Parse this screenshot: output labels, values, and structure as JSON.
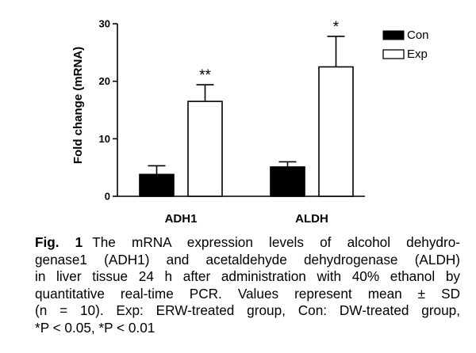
{
  "chart_data": {
    "type": "bar",
    "categories": [
      "ADH1",
      "ALDH"
    ],
    "series": [
      {
        "name": "Con",
        "color": "#000000",
        "values": [
          3.8,
          5.1
        ],
        "errors": [
          1.5,
          0.9
        ],
        "significance": [
          "",
          ""
        ]
      },
      {
        "name": "Exp",
        "color": "#ffffff",
        "values": [
          16.5,
          22.5
        ],
        "errors": [
          2.9,
          5.3
        ],
        "significance": [
          "**",
          "*"
        ]
      }
    ],
    "ylabel": "Fold change (mRNA)",
    "xlabel": "",
    "ylim": [
      0,
      30
    ],
    "yticks": [
      "0",
      "10",
      "20",
      "30"
    ],
    "legend": "top-right",
    "grid": false
  },
  "caption": {
    "fig_label": "Fig. 1",
    "lines": [
      "The mRNA expression levels of alcohol dehydro-",
      "genase1 (ADH1) and acetaldehyde dehydrogenase (ALDH)",
      "in liver tissue 24 h after administration with 40% ethanol by",
      "quantitative real-time PCR. Values represent mean ± SD",
      "(n = 10). Exp: ERW-treated group, Con: DW-treated group,",
      "*P < 0.05, *P < 0.01"
    ]
  }
}
